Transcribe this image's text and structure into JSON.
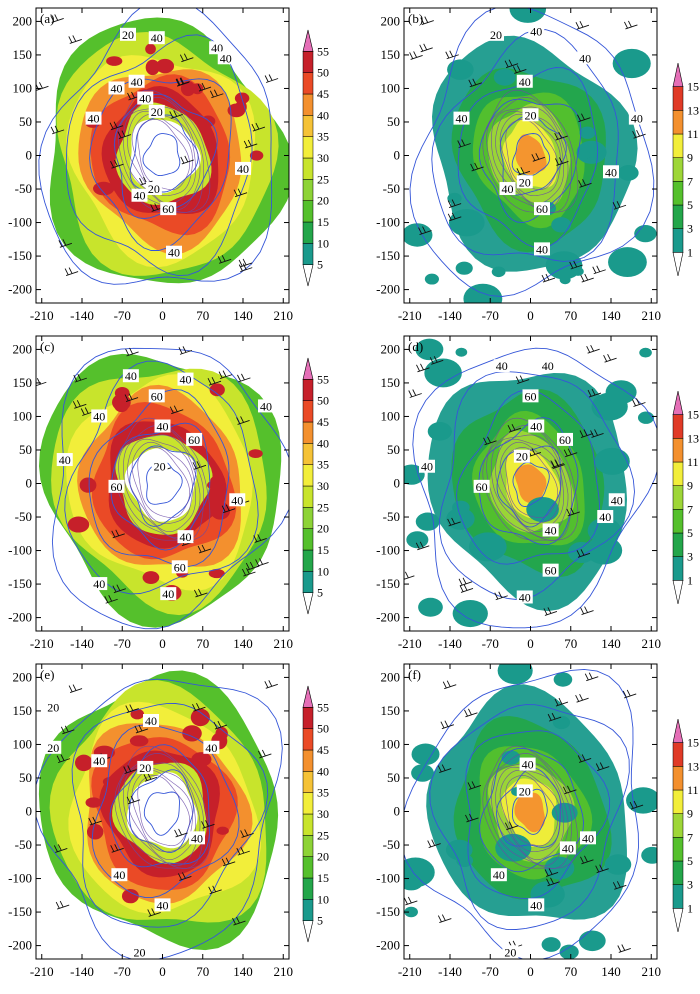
{
  "chart_data": [
    {
      "type": "heatmap",
      "panel_label": "(a)",
      "x_ticks": [
        "-210",
        "-140",
        "-70",
        "0",
        "70",
        "140",
        "210"
      ],
      "y_ticks": [
        "200",
        "150",
        "100",
        "50",
        "0",
        "-50",
        "-100",
        "-150",
        "-200"
      ],
      "xlim": [
        -220,
        220
      ],
      "ylim": [
        -220,
        220
      ],
      "colorbar": {
        "levels": [
          "5",
          "10",
          "15",
          "20",
          "25",
          "30",
          "35",
          "40",
          "45",
          "50",
          "55"
        ],
        "colors": [
          "#1a9a8c",
          "#23a64a",
          "#55c02c",
          "#8dd336",
          "#c8e42c",
          "#f2ee3a",
          "#f5c236",
          "#f3902e",
          "#ea4a26",
          "#c6202a",
          "#8d1a24",
          "#e56fb7"
        ]
      },
      "contour_labels": [
        {
          "text": "20",
          "x": -60,
          "y": 180
        },
        {
          "text": "40",
          "x": -10,
          "y": 175
        },
        {
          "text": "40",
          "x": 95,
          "y": 160
        },
        {
          "text": "40",
          "x": 110,
          "y": 145
        },
        {
          "text": "40",
          "x": -45,
          "y": 110
        },
        {
          "text": "40",
          "x": -80,
          "y": 100
        },
        {
          "text": "40",
          "x": -30,
          "y": 85
        },
        {
          "text": "40",
          "x": -120,
          "y": 55
        },
        {
          "text": "20",
          "x": -10,
          "y": 65
        },
        {
          "text": "40",
          "x": 140,
          "y": -20
        },
        {
          "text": "20",
          "x": -15,
          "y": -50
        },
        {
          "text": "40",
          "x": -40,
          "y": -60
        },
        {
          "text": "60",
          "x": 10,
          "y": -80
        },
        {
          "text": "40",
          "x": 20,
          "y": -145
        }
      ]
    },
    {
      "type": "heatmap",
      "panel_label": "(b)",
      "x_ticks": [
        "-210",
        "-140",
        "-70",
        "0",
        "70",
        "140",
        "210"
      ],
      "y_ticks": [
        "200",
        "150",
        "100",
        "50",
        "0",
        "-50",
        "-100",
        "-150",
        "-200"
      ],
      "xlim": [
        -220,
        220
      ],
      "ylim": [
        -220,
        220
      ],
      "colorbar": {
        "levels": [
          "1",
          "3",
          "5",
          "7",
          "9",
          "11",
          "13",
          "15"
        ],
        "colors": [
          "#1a9a8c",
          "#23a64a",
          "#55c02c",
          "#9ed637",
          "#f2ee3a",
          "#f3902e",
          "#e03a26",
          "#b41f28",
          "#e56fb7"
        ]
      },
      "contour_labels": [
        {
          "text": "20",
          "x": -60,
          "y": 180
        },
        {
          "text": "40",
          "x": 10,
          "y": 185
        },
        {
          "text": "40",
          "x": 95,
          "y": 145
        },
        {
          "text": "40",
          "x": -10,
          "y": 110
        },
        {
          "text": "40",
          "x": -120,
          "y": 55
        },
        {
          "text": "20",
          "x": 0,
          "y": 60
        },
        {
          "text": "40",
          "x": 185,
          "y": 55
        },
        {
          "text": "20",
          "x": -10,
          "y": -40
        },
        {
          "text": "40",
          "x": -40,
          "y": -50
        },
        {
          "text": "40",
          "x": 140,
          "y": -25
        },
        {
          "text": "60",
          "x": 20,
          "y": -80
        },
        {
          "text": "40",
          "x": 20,
          "y": -140
        }
      ]
    },
    {
      "type": "heatmap",
      "panel_label": "(c)",
      "x_ticks": [
        "-210",
        "-140",
        "-70",
        "0",
        "70",
        "140",
        "210"
      ],
      "y_ticks": [
        "200",
        "150",
        "100",
        "50",
        "0",
        "-50",
        "-100",
        "-150",
        "-200"
      ],
      "xlim": [
        -220,
        220
      ],
      "ylim": [
        -220,
        220
      ],
      "colorbar": {
        "levels": [
          "5",
          "10",
          "15",
          "20",
          "25",
          "30",
          "35",
          "40",
          "45",
          "50",
          "55"
        ],
        "colors": [
          "#1a9a8c",
          "#23a64a",
          "#55c02c",
          "#8dd336",
          "#c8e42c",
          "#f2ee3a",
          "#f5c236",
          "#f3902e",
          "#ea4a26",
          "#c6202a",
          "#8d1a24",
          "#e56fb7"
        ]
      },
      "contour_labels": [
        {
          "text": "40",
          "x": -55,
          "y": 160
        },
        {
          "text": "40",
          "x": 40,
          "y": 155
        },
        {
          "text": "60",
          "x": -10,
          "y": 130
        },
        {
          "text": "40",
          "x": -110,
          "y": 100
        },
        {
          "text": "40",
          "x": 180,
          "y": 115
        },
        {
          "text": "40",
          "x": 0,
          "y": 85
        },
        {
          "text": "60",
          "x": 55,
          "y": 65
        },
        {
          "text": "40",
          "x": -170,
          "y": 35
        },
        {
          "text": "20",
          "x": -5,
          "y": 25
        },
        {
          "text": "60",
          "x": -80,
          "y": -5
        },
        {
          "text": "40",
          "x": 130,
          "y": -25
        },
        {
          "text": "40",
          "x": 40,
          "y": -80
        },
        {
          "text": "60",
          "x": 30,
          "y": -125
        },
        {
          "text": "40",
          "x": -110,
          "y": -150
        },
        {
          "text": "40",
          "x": 10,
          "y": -165
        }
      ]
    },
    {
      "type": "heatmap",
      "panel_label": "(d)",
      "x_ticks": [
        "-210",
        "-140",
        "-70",
        "0",
        "70",
        "140",
        "210"
      ],
      "y_ticks": [
        "200",
        "150",
        "100",
        "50",
        "0",
        "-50",
        "-100",
        "-150",
        "-200"
      ],
      "xlim": [
        -220,
        220
      ],
      "ylim": [
        -220,
        220
      ],
      "colorbar": {
        "levels": [
          "1",
          "3",
          "5",
          "7",
          "9",
          "11",
          "13",
          "15"
        ],
        "colors": [
          "#1a9a8c",
          "#23a64a",
          "#55c02c",
          "#9ed637",
          "#f2ee3a",
          "#f3902e",
          "#e03a26",
          "#b41f28",
          "#e56fb7"
        ]
      },
      "contour_labels": [
        {
          "text": "40",
          "x": -50,
          "y": 175
        },
        {
          "text": "40",
          "x": 30,
          "y": 175
        },
        {
          "text": "60",
          "x": 0,
          "y": 130
        },
        {
          "text": "40",
          "x": 10,
          "y": 85
        },
        {
          "text": "60",
          "x": 60,
          "y": 65
        },
        {
          "text": "40",
          "x": -180,
          "y": 25
        },
        {
          "text": "20",
          "x": -15,
          "y": 40
        },
        {
          "text": "60",
          "x": -85,
          "y": -5
        },
        {
          "text": "40",
          "x": 150,
          "y": -25
        },
        {
          "text": "40",
          "x": 130,
          "y": -50
        },
        {
          "text": "40",
          "x": 35,
          "y": -70
        },
        {
          "text": "60",
          "x": 35,
          "y": -130
        },
        {
          "text": "40",
          "x": -10,
          "y": -170
        }
      ]
    },
    {
      "type": "heatmap",
      "panel_label": "(e)",
      "x_ticks": [
        "-210",
        "-140",
        "-70",
        "0",
        "70",
        "140",
        "210"
      ],
      "y_ticks": [
        "200",
        "150",
        "100",
        "50",
        "0",
        "-50",
        "-100",
        "-150",
        "-200"
      ],
      "xlim": [
        -220,
        220
      ],
      "ylim": [
        -220,
        220
      ],
      "colorbar": {
        "levels": [
          "5",
          "10",
          "15",
          "20",
          "25",
          "30",
          "35",
          "40",
          "45",
          "50",
          "55"
        ],
        "colors": [
          "#1a9a8c",
          "#23a64a",
          "#55c02c",
          "#8dd336",
          "#c8e42c",
          "#f2ee3a",
          "#f5c236",
          "#f3902e",
          "#ea4a26",
          "#c6202a",
          "#8d1a24",
          "#e56fb7"
        ]
      },
      "contour_labels": [
        {
          "text": "20",
          "x": -190,
          "y": 155
        },
        {
          "text": "40",
          "x": -20,
          "y": 135
        },
        {
          "text": "20",
          "x": -190,
          "y": 95
        },
        {
          "text": "40",
          "x": -110,
          "y": 75
        },
        {
          "text": "40",
          "x": 85,
          "y": 95
        },
        {
          "text": "20",
          "x": -30,
          "y": 65
        },
        {
          "text": "40",
          "x": 60,
          "y": -40
        },
        {
          "text": "40",
          "x": -75,
          "y": -95
        },
        {
          "text": "40",
          "x": 0,
          "y": -140
        },
        {
          "text": "20",
          "x": -40,
          "y": -210
        }
      ]
    },
    {
      "type": "heatmap",
      "panel_label": "(f)",
      "x_ticks": [
        "-210",
        "-140",
        "-70",
        "0",
        "70",
        "140",
        "210"
      ],
      "y_ticks": [
        "200",
        "150",
        "100",
        "50",
        "0",
        "-50",
        "-100",
        "-150",
        "-200"
      ],
      "xlim": [
        -220,
        220
      ],
      "ylim": [
        -220,
        220
      ],
      "colorbar": {
        "levels": [
          "1",
          "3",
          "5",
          "7",
          "9",
          "11",
          "13",
          "15"
        ],
        "colors": [
          "#1a9a8c",
          "#23a64a",
          "#55c02c",
          "#9ed637",
          "#f2ee3a",
          "#f3902e",
          "#e03a26",
          "#b41f28",
          "#e56fb7"
        ]
      },
      "contour_labels": [
        {
          "text": "40",
          "x": -5,
          "y": 70
        },
        {
          "text": "20",
          "x": -10,
          "y": 30
        },
        {
          "text": "40",
          "x": 100,
          "y": -40
        },
        {
          "text": "40",
          "x": 65,
          "y": -55
        },
        {
          "text": "40",
          "x": -55,
          "y": -95
        },
        {
          "text": "40",
          "x": 10,
          "y": -140
        },
        {
          "text": "20",
          "x": -35,
          "y": -210
        }
      ]
    }
  ]
}
